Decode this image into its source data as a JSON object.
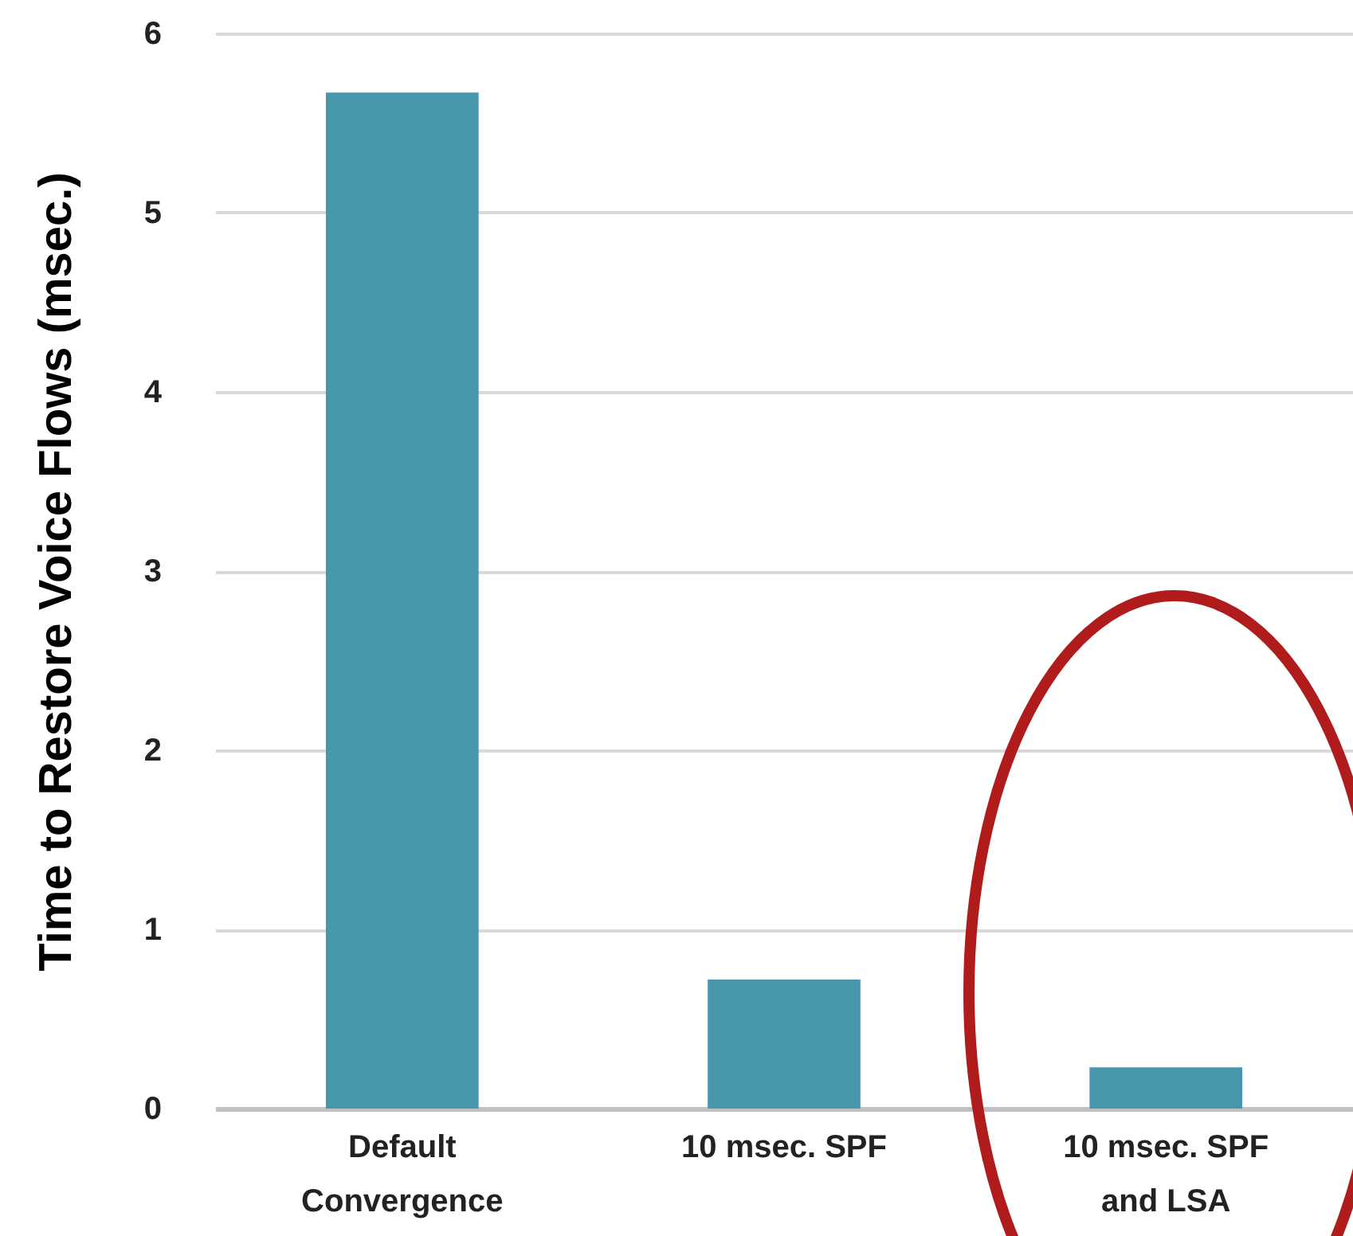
{
  "chart_data": {
    "type": "bar",
    "ylabel": "Time to Restore Voice Flows (msec.)",
    "categories": [
      "Default Convergence",
      "10 msec. SPF",
      "10 msec. SPF and LSA"
    ],
    "values": [
      5.67,
      0.72,
      0.23
    ],
    "color": "#4797ac",
    "ylim": [
      0,
      6
    ],
    "yticks": [
      0,
      1,
      2,
      3,
      4,
      5,
      6
    ],
    "grid": "y"
  }
}
